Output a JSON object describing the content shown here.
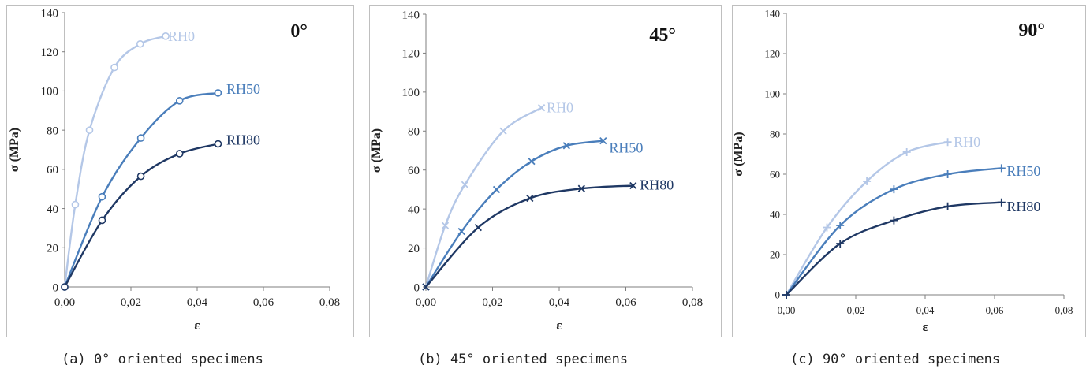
{
  "colors": {
    "RH0": "#b4c7e7",
    "RH50": "#4a7ebb",
    "RH80": "#1f3864",
    "axis": "#7f7f7f",
    "border": "#bfbfbf"
  },
  "captions": [
    "(a) 0° oriented specimens",
    "(b) 45° oriented specimens",
    "(c) 90° oriented specimens"
  ],
  "chart_data": [
    {
      "type": "line",
      "tag": "0°",
      "xlabel": "ε",
      "ylabel": "σ (MPa)",
      "xlim": [
        0,
        0.08
      ],
      "ylim": [
        0,
        140
      ],
      "xticks": [
        "0,00",
        "0,02",
        "0,04",
        "0,06",
        "0,08"
      ],
      "yticks": [
        "0",
        "20",
        "40",
        "60",
        "80",
        "100",
        "120",
        "140"
      ],
      "marker": "o",
      "series": [
        {
          "name": "RH0",
          "points": [
            [
              0,
              0
            ],
            [
              0.0032,
              42
            ],
            [
              0.0075,
              80
            ],
            [
              0.015,
              112
            ],
            [
              0.0228,
              124
            ],
            [
              0.0305,
              128
            ]
          ]
        },
        {
          "name": "RH50",
          "points": [
            [
              0,
              0
            ],
            [
              0.0113,
              46
            ],
            [
              0.023,
              76
            ],
            [
              0.0347,
              95
            ],
            [
              0.0463,
              99
            ]
          ]
        },
        {
          "name": "RH80",
          "points": [
            [
              0,
              0
            ],
            [
              0.0113,
              34
            ],
            [
              0.023,
              56.5
            ],
            [
              0.0347,
              68
            ],
            [
              0.0463,
              73
            ]
          ]
        }
      ]
    },
    {
      "type": "line",
      "tag": "45°",
      "xlabel": "ε",
      "ylabel": "σ (MPa)",
      "xlim": [
        0,
        0.08
      ],
      "ylim": [
        0,
        140
      ],
      "xticks": [
        "0,00",
        "0,02",
        "0,04",
        "0,06",
        "0,08"
      ],
      "yticks": [
        "0",
        "20",
        "40",
        "60",
        "80",
        "100",
        "120",
        "140"
      ],
      "marker": "x",
      "series": [
        {
          "name": "RH0",
          "points": [
            [
              0,
              0
            ],
            [
              0.0058,
              31.5
            ],
            [
              0.0117,
              52.5
            ],
            [
              0.0232,
              80
            ],
            [
              0.0347,
              92
            ]
          ]
        },
        {
          "name": "RH50",
          "points": [
            [
              0,
              0
            ],
            [
              0.0107,
              28.5
            ],
            [
              0.0212,
              50
            ],
            [
              0.0317,
              64.5
            ],
            [
              0.0422,
              72.5
            ],
            [
              0.0532,
              75
            ]
          ]
        },
        {
          "name": "RH80",
          "points": [
            [
              0,
              0
            ],
            [
              0.0157,
              30.5
            ],
            [
              0.0312,
              45.5
            ],
            [
              0.0467,
              50.5
            ],
            [
              0.0622,
              52
            ]
          ]
        }
      ]
    },
    {
      "type": "line",
      "tag": "90°",
      "xlabel": "ε",
      "ylabel": "σ (MPa)",
      "xlim": [
        0,
        0.08
      ],
      "ylim": [
        0,
        140
      ],
      "xticks": [
        "0,00",
        "0,02",
        "0,04",
        "0,06",
        "0,08"
      ],
      "yticks": [
        "0",
        "20",
        "40",
        "60",
        "80",
        "100",
        "120",
        "140"
      ],
      "marker": "+",
      "series": [
        {
          "name": "RH0",
          "points": [
            [
              0,
              0
            ],
            [
              0.0117,
              33.5
            ],
            [
              0.0232,
              56.5
            ],
            [
              0.0347,
              71
            ],
            [
              0.0465,
              76
            ]
          ]
        },
        {
          "name": "RH50",
          "points": [
            [
              0,
              0
            ],
            [
              0.0155,
              34.5
            ],
            [
              0.031,
              52.5
            ],
            [
              0.0465,
              60
            ],
            [
              0.062,
              63
            ]
          ]
        },
        {
          "name": "RH80",
          "points": [
            [
              0,
              0
            ],
            [
              0.0155,
              25.5
            ],
            [
              0.031,
              37
            ],
            [
              0.0465,
              44
            ],
            [
              0.062,
              46
            ]
          ]
        }
      ]
    }
  ]
}
